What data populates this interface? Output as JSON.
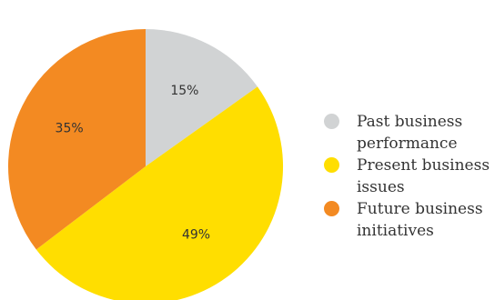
{
  "chart_data": {
    "type": "pie",
    "title": "",
    "categories": [
      "Past business\nperformance",
      "Present business\nissues",
      "Future business\ninitiatives"
    ],
    "values": [
      15,
      49,
      35
    ],
    "labels": [
      "15%",
      "49%",
      "35%"
    ],
    "colors": [
      "#D1D3D4",
      "#FFDE00",
      "#F38A22"
    ],
    "legend": "right",
    "start": "top, clockwise"
  }
}
